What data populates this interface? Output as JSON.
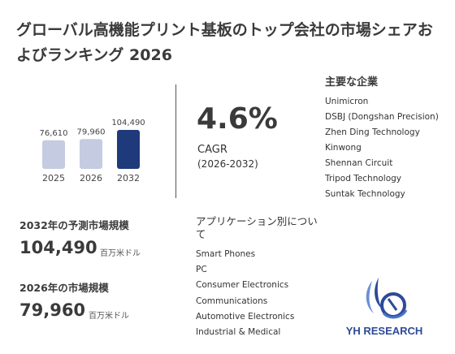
{
  "title": "グローバル高機能プリント基板のトップ会社の市場シェアおよびランキング 2026",
  "chart_data": {
    "type": "bar",
    "categories": [
      "2025",
      "2026",
      "2032"
    ],
    "values": [
      76610,
      79960,
      104490
    ],
    "value_labels": [
      "76,610",
      "79,960",
      "104,490"
    ],
    "colors": [
      "#c5cbe0",
      "#c5cbe0",
      "#1f3a7a"
    ]
  },
  "cagr": {
    "value": "4.6%",
    "label": "CAGR",
    "period": "(2026-2032)"
  },
  "companies": {
    "title": "主要な企業",
    "items": [
      "Unimicron",
      "DSBJ (Dongshan Precision)",
      "Zhen Ding Technology",
      "Kinwong",
      "Shennan Circuit",
      "Tripod Technology",
      "Suntak Technology"
    ]
  },
  "forecast": {
    "label": "2032年の予測市場規模",
    "value": "104,490",
    "unit": "百万米ドル"
  },
  "current": {
    "label": "2026年の市場規模",
    "value": "79,960",
    "unit": "百万米ドル"
  },
  "applications": {
    "title": "アプリケーション別について",
    "items": [
      "Smart Phones",
      "PC",
      "Consumer Electronics",
      "Communications",
      "Automotive Electronics",
      "Industrial & Medical"
    ]
  },
  "logo": {
    "text": "YH RESEARCH"
  }
}
